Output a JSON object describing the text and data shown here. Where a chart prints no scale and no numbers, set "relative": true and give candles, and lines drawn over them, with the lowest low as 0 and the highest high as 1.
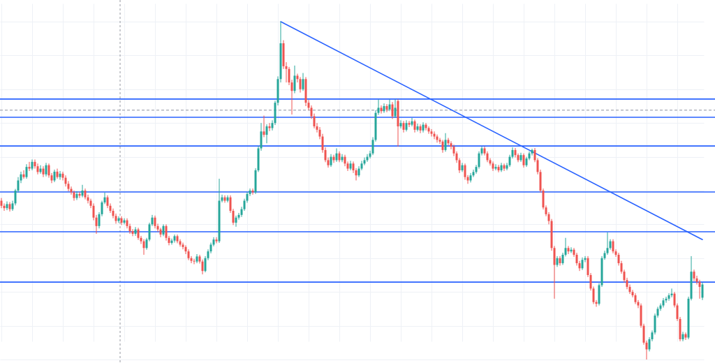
{
  "chart_data": {
    "type": "candlestick",
    "relative": true,
    "grid": true,
    "categories": [
      null,
      null,
      null,
      null,
      null,
      null,
      null,
      null,
      null,
      null,
      null,
      null,
      null,
      null,
      null,
      null,
      null,
      null,
      null,
      null,
      null,
      null,
      null,
      null,
      null,
      null,
      null,
      null,
      null,
      null,
      null,
      null,
      null,
      null,
      null,
      null,
      null,
      null,
      null,
      null,
      null,
      null,
      null,
      null,
      null,
      null,
      null,
      null,
      null,
      null,
      null,
      null,
      null,
      null,
      null,
      null,
      null,
      null,
      null,
      null,
      null,
      null,
      null,
      null,
      null,
      null,
      null,
      null,
      null,
      null,
      null,
      null,
      null,
      null,
      null,
      null,
      null,
      null,
      null,
      null,
      null,
      null,
      null,
      null,
      null,
      null,
      null,
      null,
      null,
      null,
      null,
      null,
      null,
      null,
      null,
      null,
      null,
      null,
      null,
      null,
      null,
      null,
      null,
      null,
      null,
      null,
      null,
      null,
      null,
      null,
      null,
      null,
      null,
      null,
      null,
      null,
      null,
      null,
      null,
      null,
      null,
      null,
      null,
      null,
      null,
      null,
      null,
      null,
      null,
      null,
      null,
      null,
      null,
      null,
      null,
      null,
      null,
      null,
      null,
      null,
      null,
      null,
      null,
      null,
      null,
      null,
      null,
      null,
      null,
      null,
      null,
      null,
      null,
      null,
      null,
      null,
      null,
      null,
      null,
      null,
      null,
      null,
      null,
      null,
      null,
      null,
      null,
      null,
      null,
      null,
      null,
      null,
      null,
      null,
      null,
      null,
      null,
      null,
      null,
      null,
      null,
      null,
      null,
      null,
      null,
      null,
      null,
      null,
      null,
      null,
      null,
      null,
      null,
      null,
      null,
      null,
      null,
      null,
      null,
      null,
      null,
      null,
      null,
      null,
      null,
      null,
      null,
      null,
      null,
      null,
      null,
      null,
      null,
      null,
      null,
      null,
      null,
      null,
      null,
      null,
      null,
      null,
      null,
      null,
      null,
      null,
      null,
      null,
      null,
      null,
      null,
      null,
      null,
      null,
      null,
      null,
      null,
      null,
      null,
      null,
      null,
      null,
      null,
      null,
      null,
      null,
      null,
      null,
      null,
      null,
      null,
      null
    ],
    "ohlc": [
      [
        0.47,
        0.478,
        0.448,
        0.455
      ],
      [
        0.455,
        0.462,
        0.44,
        0.448
      ],
      [
        0.448,
        0.468,
        0.442,
        0.46
      ],
      [
        0.46,
        0.466,
        0.438,
        0.445
      ],
      [
        0.445,
        0.47,
        0.44,
        0.462
      ],
      [
        0.462,
        0.505,
        0.456,
        0.5
      ],
      [
        0.5,
        0.54,
        0.494,
        0.53
      ],
      [
        0.53,
        0.556,
        0.522,
        0.548
      ],
      [
        0.548,
        0.56,
        0.535,
        0.54
      ],
      [
        0.54,
        0.578,
        0.535,
        0.57
      ],
      [
        0.57,
        0.585,
        0.558,
        0.565
      ],
      [
        0.565,
        0.592,
        0.56,
        0.585
      ],
      [
        0.585,
        0.592,
        0.565,
        0.572
      ],
      [
        0.572,
        0.58,
        0.548,
        0.555
      ],
      [
        0.555,
        0.575,
        0.55,
        0.565
      ],
      [
        0.565,
        0.572,
        0.54,
        0.548
      ],
      [
        0.548,
        0.582,
        0.542,
        0.575
      ],
      [
        0.575,
        0.58,
        0.538,
        0.545
      ],
      [
        0.545,
        0.552,
        0.522,
        0.53
      ],
      [
        0.53,
        0.562,
        0.525,
        0.556
      ],
      [
        0.556,
        0.565,
        0.535,
        0.54
      ],
      [
        0.54,
        0.558,
        0.532,
        0.55
      ],
      [
        0.55,
        0.556,
        0.53,
        0.538
      ],
      [
        0.538,
        0.545,
        0.512,
        0.52
      ],
      [
        0.52,
        0.528,
        0.498,
        0.505
      ],
      [
        0.505,
        0.512,
        0.488,
        0.495
      ],
      [
        0.495,
        0.5,
        0.47,
        0.478
      ],
      [
        0.478,
        0.498,
        0.472,
        0.49
      ],
      [
        0.49,
        0.496,
        0.478,
        0.485
      ],
      [
        0.485,
        0.517,
        0.48,
        0.5
      ],
      [
        0.5,
        0.506,
        0.474,
        0.48
      ],
      [
        0.48,
        0.488,
        0.462,
        0.47
      ],
      [
        0.47,
        0.476,
        0.448,
        0.455
      ],
      [
        0.455,
        0.462,
        0.412,
        0.42
      ],
      [
        0.42,
        0.428,
        0.372,
        0.395
      ],
      [
        0.395,
        0.436,
        0.388,
        0.43
      ],
      [
        0.43,
        0.47,
        0.424,
        0.465
      ],
      [
        0.465,
        0.494,
        0.46,
        0.48
      ],
      [
        0.48,
        0.486,
        0.448,
        0.455
      ],
      [
        0.455,
        0.462,
        0.434,
        0.44
      ],
      [
        0.44,
        0.447,
        0.418,
        0.425
      ],
      [
        0.425,
        0.432,
        0.402,
        0.41
      ],
      [
        0.41,
        0.424,
        0.404,
        0.418
      ],
      [
        0.418,
        0.424,
        0.398,
        0.405
      ],
      [
        0.405,
        0.418,
        0.4,
        0.412
      ],
      [
        0.412,
        0.418,
        0.388,
        0.395
      ],
      [
        0.395,
        0.402,
        0.372,
        0.38
      ],
      [
        0.38,
        0.386,
        0.365,
        0.372
      ],
      [
        0.372,
        0.392,
        0.366,
        0.385
      ],
      [
        0.385,
        0.39,
        0.354,
        0.36
      ],
      [
        0.36,
        0.366,
        0.342,
        0.35
      ],
      [
        0.35,
        0.356,
        0.31,
        0.33
      ],
      [
        0.33,
        0.36,
        0.325,
        0.355
      ],
      [
        0.355,
        0.405,
        0.35,
        0.4
      ],
      [
        0.4,
        0.428,
        0.395,
        0.42
      ],
      [
        0.42,
        0.426,
        0.388,
        0.395
      ],
      [
        0.395,
        0.402,
        0.378,
        0.385
      ],
      [
        0.385,
        0.39,
        0.362,
        0.37
      ],
      [
        0.37,
        0.4,
        0.365,
        0.395
      ],
      [
        0.395,
        0.4,
        0.352,
        0.36
      ],
      [
        0.36,
        0.366,
        0.338,
        0.345
      ],
      [
        0.345,
        0.358,
        0.34,
        0.352
      ],
      [
        0.352,
        0.37,
        0.346,
        0.365
      ],
      [
        0.365,
        0.37,
        0.344,
        0.35
      ],
      [
        0.35,
        0.356,
        0.334,
        0.34
      ],
      [
        0.34,
        0.346,
        0.326,
        0.333
      ],
      [
        0.333,
        0.338,
        0.312,
        0.32
      ],
      [
        0.32,
        0.326,
        0.294,
        0.3
      ],
      [
        0.3,
        0.306,
        0.285,
        0.292
      ],
      [
        0.292,
        0.298,
        0.282,
        0.29
      ],
      [
        0.29,
        0.312,
        0.285,
        0.305
      ],
      [
        0.305,
        0.31,
        0.284,
        0.29
      ],
      [
        0.29,
        0.296,
        0.252,
        0.262
      ],
      [
        0.262,
        0.306,
        0.258,
        0.3
      ],
      [
        0.3,
        0.326,
        0.294,
        0.32
      ],
      [
        0.32,
        0.346,
        0.314,
        0.34
      ],
      [
        0.34,
        0.362,
        0.335,
        0.355
      ],
      [
        0.355,
        0.362,
        0.344,
        0.35
      ],
      [
        0.35,
        0.535,
        0.345,
        0.47
      ],
      [
        0.47,
        0.488,
        0.465,
        0.48
      ],
      [
        0.48,
        0.486,
        0.464,
        0.47
      ],
      [
        0.47,
        0.486,
        0.465,
        0.48
      ],
      [
        0.48,
        0.486,
        0.434,
        0.44
      ],
      [
        0.44,
        0.446,
        0.398,
        0.405
      ],
      [
        0.405,
        0.426,
        0.393,
        0.42
      ],
      [
        0.42,
        0.434,
        0.414,
        0.428
      ],
      [
        0.428,
        0.452,
        0.422,
        0.445
      ],
      [
        0.445,
        0.476,
        0.44,
        0.47
      ],
      [
        0.47,
        0.496,
        0.464,
        0.49
      ],
      [
        0.49,
        0.506,
        0.484,
        0.5
      ],
      [
        0.5,
        0.506,
        0.488,
        0.495
      ],
      [
        0.495,
        0.566,
        0.49,
        0.56
      ],
      [
        0.56,
        0.632,
        0.555,
        0.625
      ],
      [
        0.625,
        0.7,
        0.618,
        0.675
      ],
      [
        0.675,
        0.722,
        0.658,
        0.665
      ],
      [
        0.665,
        0.696,
        0.64,
        0.69
      ],
      [
        0.69,
        0.7,
        0.676,
        0.685
      ],
      [
        0.685,
        0.708,
        0.678,
        0.7
      ],
      [
        0.7,
        0.766,
        0.694,
        0.76
      ],
      [
        0.76,
        0.838,
        0.752,
        0.83
      ],
      [
        0.83,
        1.0,
        0.82,
        0.936
      ],
      [
        0.936,
        0.945,
        0.86,
        0.868
      ],
      [
        0.868,
        0.88,
        0.82,
        0.86
      ],
      [
        0.86,
        0.866,
        0.812,
        0.82
      ],
      [
        0.82,
        0.828,
        0.725,
        0.795
      ],
      [
        0.795,
        0.87,
        0.788,
        0.84
      ],
      [
        0.84,
        0.846,
        0.82,
        0.83
      ],
      [
        0.83,
        0.836,
        0.79,
        0.8
      ],
      [
        0.8,
        0.848,
        0.795,
        0.83
      ],
      [
        0.83,
        0.836,
        0.75,
        0.76
      ],
      [
        0.76,
        0.768,
        0.738,
        0.745
      ],
      [
        0.745,
        0.752,
        0.712,
        0.72
      ],
      [
        0.72,
        0.728,
        0.684,
        0.69
      ],
      [
        0.69,
        0.7,
        0.672,
        0.68
      ],
      [
        0.68,
        0.688,
        0.652,
        0.66
      ],
      [
        0.66,
        0.668,
        0.612,
        0.62
      ],
      [
        0.62,
        0.628,
        0.584,
        0.59
      ],
      [
        0.59,
        0.598,
        0.568,
        0.575
      ],
      [
        0.575,
        0.608,
        0.57,
        0.6
      ],
      [
        0.6,
        0.606,
        0.582,
        0.59
      ],
      [
        0.59,
        0.625,
        0.585,
        0.61
      ],
      [
        0.61,
        0.616,
        0.584,
        0.59
      ],
      [
        0.59,
        0.608,
        0.584,
        0.6
      ],
      [
        0.6,
        0.606,
        0.572,
        0.58
      ],
      [
        0.58,
        0.586,
        0.558,
        0.565
      ],
      [
        0.565,
        0.588,
        0.56,
        0.58
      ],
      [
        0.58,
        0.586,
        0.552,
        0.56
      ],
      [
        0.56,
        0.566,
        0.53,
        0.545
      ],
      [
        0.545,
        0.572,
        0.54,
        0.565
      ],
      [
        0.565,
        0.588,
        0.56,
        0.58
      ],
      [
        0.58,
        0.598,
        0.575,
        0.59
      ],
      [
        0.59,
        0.608,
        0.585,
        0.6
      ],
      [
        0.6,
        0.618,
        0.595,
        0.61
      ],
      [
        0.61,
        0.658,
        0.605,
        0.65
      ],
      [
        0.65,
        0.738,
        0.645,
        0.73
      ],
      [
        0.73,
        0.77,
        0.724,
        0.745
      ],
      [
        0.745,
        0.752,
        0.728,
        0.735
      ],
      [
        0.735,
        0.758,
        0.73,
        0.75
      ],
      [
        0.75,
        0.756,
        0.732,
        0.74
      ],
      [
        0.74,
        0.77,
        0.735,
        0.755
      ],
      [
        0.755,
        0.762,
        0.712,
        0.72
      ],
      [
        0.72,
        0.77,
        0.715,
        0.745
      ],
      [
        0.765,
        0.77,
        0.63,
        0.69
      ],
      [
        0.69,
        0.708,
        0.684,
        0.7
      ],
      [
        0.7,
        0.706,
        0.672,
        0.68
      ],
      [
        0.68,
        0.708,
        0.675,
        0.7
      ],
      [
        0.7,
        0.706,
        0.688,
        0.695
      ],
      [
        0.695,
        0.715,
        0.69,
        0.705
      ],
      [
        0.705,
        0.71,
        0.672,
        0.68
      ],
      [
        0.68,
        0.698,
        0.675,
        0.69
      ],
      [
        0.69,
        0.696,
        0.67,
        0.678
      ],
      [
        0.678,
        0.702,
        0.672,
        0.695
      ],
      [
        0.695,
        0.7,
        0.678,
        0.685
      ],
      [
        0.685,
        0.69,
        0.668,
        0.675
      ],
      [
        0.675,
        0.682,
        0.66,
        0.668
      ],
      [
        0.668,
        0.675,
        0.652,
        0.66
      ],
      [
        0.66,
        0.666,
        0.642,
        0.65
      ],
      [
        0.65,
        0.656,
        0.638,
        0.645
      ],
      [
        0.645,
        0.65,
        0.612,
        0.62
      ],
      [
        0.62,
        0.67,
        0.615,
        0.65
      ],
      [
        0.65,
        0.656,
        0.634,
        0.64
      ],
      [
        0.64,
        0.646,
        0.622,
        0.63
      ],
      [
        0.63,
        0.636,
        0.602,
        0.61
      ],
      [
        0.61,
        0.616,
        0.582,
        0.59
      ],
      [
        0.59,
        0.596,
        0.552,
        0.56
      ],
      [
        0.56,
        0.582,
        0.555,
        0.575
      ],
      [
        0.575,
        0.58,
        0.532,
        0.54
      ],
      [
        0.54,
        0.546,
        0.52,
        0.53
      ],
      [
        0.53,
        0.552,
        0.524,
        0.545
      ],
      [
        0.545,
        0.562,
        0.54,
        0.555
      ],
      [
        0.555,
        0.576,
        0.55,
        0.57
      ],
      [
        0.57,
        0.616,
        0.565,
        0.61
      ],
      [
        0.61,
        0.63,
        0.604,
        0.625
      ],
      [
        0.625,
        0.63,
        0.604,
        0.61
      ],
      [
        0.61,
        0.616,
        0.584,
        0.59
      ],
      [
        0.59,
        0.596,
        0.574,
        0.58
      ],
      [
        0.58,
        0.586,
        0.558,
        0.565
      ],
      [
        0.565,
        0.578,
        0.56,
        0.57
      ],
      [
        0.57,
        0.576,
        0.554,
        0.56
      ],
      [
        0.56,
        0.582,
        0.555,
        0.575
      ],
      [
        0.575,
        0.58,
        0.558,
        0.565
      ],
      [
        0.565,
        0.582,
        0.56,
        0.575
      ],
      [
        0.575,
        0.606,
        0.57,
        0.6
      ],
      [
        0.6,
        0.628,
        0.595,
        0.62
      ],
      [
        0.62,
        0.626,
        0.598,
        0.605
      ],
      [
        0.605,
        0.61,
        0.584,
        0.59
      ],
      [
        0.59,
        0.612,
        0.585,
        0.605
      ],
      [
        0.605,
        0.61,
        0.568,
        0.575
      ],
      [
        0.575,
        0.6,
        0.57,
        0.595
      ],
      [
        0.595,
        0.616,
        0.59,
        0.61
      ],
      [
        0.61,
        0.624,
        0.604,
        0.62
      ],
      [
        0.62,
        0.626,
        0.584,
        0.59
      ],
      [
        0.59,
        0.596,
        0.548,
        0.555
      ],
      [
        0.555,
        0.562,
        0.494,
        0.5
      ],
      [
        0.5,
        0.506,
        0.444,
        0.45
      ],
      [
        0.45,
        0.456,
        0.424,
        0.43
      ],
      [
        0.43,
        0.436,
        0.4,
        0.41
      ],
      [
        0.41,
        0.416,
        0.322,
        0.33
      ],
      [
        0.33,
        0.336,
        0.18,
        0.28
      ],
      [
        0.28,
        0.306,
        0.274,
        0.3
      ],
      [
        0.3,
        0.306,
        0.278,
        0.285
      ],
      [
        0.285,
        0.316,
        0.28,
        0.31
      ],
      [
        0.31,
        0.36,
        0.305,
        0.33
      ],
      [
        0.33,
        0.336,
        0.312,
        0.32
      ],
      [
        0.32,
        0.332,
        0.315,
        0.325
      ],
      [
        0.325,
        0.33,
        0.304,
        0.31
      ],
      [
        0.31,
        0.316,
        0.278,
        0.285
      ],
      [
        0.285,
        0.292,
        0.262,
        0.27
      ],
      [
        0.27,
        0.302,
        0.265,
        0.295
      ],
      [
        0.295,
        0.306,
        0.288,
        0.3
      ],
      [
        0.3,
        0.306,
        0.244,
        0.25
      ],
      [
        0.25,
        0.256,
        0.204,
        0.21
      ],
      [
        0.21,
        0.216,
        0.164,
        0.17
      ],
      [
        0.17,
        0.176,
        0.156,
        0.165
      ],
      [
        0.165,
        0.226,
        0.16,
        0.22
      ],
      [
        0.22,
        0.306,
        0.215,
        0.3
      ],
      [
        0.3,
        0.322,
        0.295,
        0.315
      ],
      [
        0.315,
        0.376,
        0.31,
        0.33
      ],
      [
        0.33,
        0.356,
        0.325,
        0.35
      ],
      [
        0.35,
        0.356,
        0.314,
        0.32
      ],
      [
        0.32,
        0.326,
        0.304,
        0.31
      ],
      [
        0.31,
        0.316,
        0.278,
        0.285
      ],
      [
        0.285,
        0.292,
        0.254,
        0.26
      ],
      [
        0.26,
        0.266,
        0.228,
        0.235
      ],
      [
        0.235,
        0.242,
        0.208,
        0.215
      ],
      [
        0.215,
        0.222,
        0.194,
        0.2
      ],
      [
        0.2,
        0.206,
        0.184,
        0.19
      ],
      [
        0.19,
        0.196,
        0.164,
        0.17
      ],
      [
        0.17,
        0.176,
        0.152,
        0.16
      ],
      [
        0.16,
        0.166,
        0.094,
        0.1
      ],
      [
        0.1,
        0.106,
        0.044,
        0.05
      ],
      [
        0.05,
        0.056,
        0.0,
        0.03
      ],
      [
        0.03,
        0.066,
        0.024,
        0.06
      ],
      [
        0.06,
        0.086,
        0.054,
        0.08
      ],
      [
        0.08,
        0.136,
        0.074,
        0.13
      ],
      [
        0.13,
        0.156,
        0.124,
        0.15
      ],
      [
        0.15,
        0.166,
        0.144,
        0.16
      ],
      [
        0.16,
        0.182,
        0.154,
        0.175
      ],
      [
        0.175,
        0.186,
        0.168,
        0.18
      ],
      [
        0.18,
        0.196,
        0.174,
        0.19
      ],
      [
        0.19,
        0.21,
        0.184,
        0.195
      ],
      [
        0.195,
        0.2,
        0.154,
        0.16
      ],
      [
        0.16,
        0.166,
        0.114,
        0.12
      ],
      [
        0.12,
        0.126,
        0.054,
        0.06
      ],
      [
        0.06,
        0.082,
        0.054,
        0.075
      ],
      [
        0.075,
        0.08,
        0.058,
        0.065
      ],
      [
        0.065,
        0.186,
        0.06,
        0.18
      ],
      [
        0.18,
        0.306,
        0.175,
        0.26
      ],
      [
        0.26,
        0.266,
        0.232,
        0.24
      ],
      [
        0.24,
        0.248,
        0.222,
        0.23
      ],
      [
        0.23,
        0.236,
        0.18,
        0.215
      ],
      [
        0.183,
        0.228,
        0.176,
        0.222
      ]
    ],
    "colors": [
      "#ef5350",
      "#ef5350",
      "#26a69a",
      "#ef5350",
      "#26a69a",
      "#26a69a",
      "#26a69a",
      "#26a69a",
      "#ef5350",
      "#26a69a",
      "#ef5350",
      "#26a69a",
      "#ef5350",
      "#ef5350",
      "#26a69a",
      "#ef5350",
      "#26a69a",
      "#ef5350",
      "#ef5350",
      "#26a69a",
      "#ef5350",
      "#26a69a",
      "#ef5350",
      "#ef5350",
      "#ef5350",
      "#ef5350",
      "#ef5350",
      "#26a69a",
      "#ef5350",
      "#26a69a",
      "#ef5350",
      "#ef5350",
      "#ef5350",
      "#ef5350",
      "#ef5350",
      "#26a69a",
      "#26a69a",
      "#26a69a",
      "#ef5350",
      "#ef5350",
      "#ef5350",
      "#ef5350",
      "#26a69a",
      "#ef5350",
      "#26a69a",
      "#ef5350",
      "#ef5350",
      "#ef5350",
      "#26a69a",
      "#ef5350",
      "#ef5350",
      "#ef5350",
      "#26a69a",
      "#26a69a",
      "#26a69a",
      "#ef5350",
      "#ef5350",
      "#ef5350",
      "#26a69a",
      "#ef5350",
      "#ef5350",
      "#26a69a",
      "#26a69a",
      "#ef5350",
      "#ef5350",
      "#ef5350",
      "#ef5350",
      "#ef5350",
      "#ef5350",
      "#ef5350",
      "#26a69a",
      "#ef5350",
      "#ef5350",
      "#26a69a",
      "#26a69a",
      "#26a69a",
      "#26a69a",
      "#ef5350",
      "#26a69a",
      "#26a69a",
      "#ef5350",
      "#26a69a",
      "#ef5350",
      "#ef5350",
      "#26a69a",
      "#26a69a",
      "#26a69a",
      "#26a69a",
      "#26a69a",
      "#26a69a",
      "#ef5350",
      "#26a69a",
      "#26a69a",
      "#26a69a",
      "#ef5350",
      "#26a69a",
      "#ef5350",
      "#26a69a",
      "#26a69a",
      "#26a69a",
      "#26a69a",
      "#ef5350",
      "#ef5350",
      "#ef5350",
      "#ef5350",
      "#26a69a",
      "#ef5350",
      "#ef5350",
      "#26a69a",
      "#ef5350",
      "#ef5350",
      "#ef5350",
      "#ef5350",
      "#ef5350",
      "#ef5350",
      "#ef5350",
      "#ef5350",
      "#ef5350",
      "#26a69a",
      "#ef5350",
      "#26a69a",
      "#ef5350",
      "#26a69a",
      "#ef5350",
      "#ef5350",
      "#26a69a",
      "#ef5350",
      "#ef5350",
      "#26a69a",
      "#26a69a",
      "#26a69a",
      "#26a69a",
      "#26a69a",
      "#26a69a",
      "#26a69a",
      "#26a69a",
      "#ef5350",
      "#26a69a",
      "#ef5350",
      "#26a69a",
      "#ef5350",
      "#26a69a",
      "#ef5350",
      "#26a69a",
      "#ef5350",
      "#26a69a",
      "#ef5350",
      "#26a69a",
      "#ef5350",
      "#26a69a",
      "#ef5350",
      "#26a69a",
      "#ef5350",
      "#ef5350",
      "#ef5350",
      "#ef5350",
      "#ef5350",
      "#ef5350",
      "#ef5350",
      "#26a69a",
      "#ef5350",
      "#ef5350",
      "#ef5350",
      "#ef5350",
      "#ef5350",
      "#26a69a",
      "#ef5350",
      "#ef5350",
      "#26a69a",
      "#26a69a",
      "#26a69a",
      "#26a69a",
      "#26a69a",
      "#ef5350",
      "#ef5350",
      "#ef5350",
      "#ef5350",
      "#26a69a",
      "#ef5350",
      "#26a69a",
      "#ef5350",
      "#26a69a",
      "#26a69a",
      "#26a69a",
      "#ef5350",
      "#ef5350",
      "#26a69a",
      "#ef5350",
      "#26a69a",
      "#26a69a",
      "#26a69a",
      "#ef5350",
      "#ef5350",
      "#ef5350",
      "#ef5350",
      "#ef5350",
      "#ef5350",
      "#ef5350",
      "#ef5350",
      "#26a69a",
      "#ef5350",
      "#26a69a",
      "#26a69a",
      "#ef5350",
      "#26a69a",
      "#ef5350",
      "#ef5350",
      "#ef5350",
      "#26a69a",
      "#26a69a",
      "#ef5350",
      "#ef5350",
      "#ef5350",
      "#ef5350",
      "#26a69a",
      "#26a69a",
      "#26a69a",
      "#26a69a",
      "#26a69a",
      "#ef5350",
      "#ef5350",
      "#ef5350",
      "#ef5350",
      "#ef5350",
      "#ef5350",
      "#ef5350",
      "#ef5350",
      "#ef5350",
      "#ef5350",
      "#ef5350",
      "#ef5350",
      "#ef5350",
      "#26a69a",
      "#26a69a",
      "#26a69a",
      "#26a69a",
      "#26a69a",
      "#26a69a",
      "#26a69a",
      "#26a69a",
      "#26a69a",
      "#ef5350",
      "#ef5350",
      "#ef5350",
      "#26a69a",
      "#ef5350",
      "#26a69a",
      "#26a69a",
      "#ef5350",
      "#ef5350",
      "#ef5350",
      "#26a69a"
    ],
    "series": [
      {
        "type": "line",
        "color": "#2962ff",
        "values": [
          null,
          null,
          null,
          null,
          null,
          null,
          null,
          null,
          null,
          null,
          null,
          null,
          null,
          null,
          null,
          null,
          null,
          null,
          null,
          null,
          null,
          null,
          null,
          null,
          null,
          null,
          null,
          null,
          null,
          null,
          null,
          null,
          null,
          null,
          null,
          null,
          null,
          null,
          null,
          null,
          null,
          null,
          null,
          null,
          null,
          null,
          null,
          null,
          null,
          null,
          null,
          null,
          null,
          null,
          null,
          null,
          null,
          null,
          null,
          null,
          null,
          null,
          null,
          null,
          null,
          null,
          null,
          null,
          null,
          null,
          null,
          null,
          null,
          null,
          null,
          null,
          null,
          null,
          null,
          null,
          null,
          null,
          null,
          null,
          null,
          null,
          null,
          null,
          null,
          null,
          null,
          null,
          null,
          null,
          null,
          null,
          null,
          null,
          null,
          null,
          1.0,
          null,
          null,
          null,
          null,
          null,
          null,
          null,
          null,
          null,
          null,
          null,
          null,
          null,
          null,
          null,
          null,
          null,
          null,
          null,
          null,
          null,
          null,
          null,
          null,
          null,
          null,
          null,
          null,
          null,
          null,
          null,
          null,
          null,
          null,
          null,
          null,
          null,
          null,
          null,
          null,
          null,
          null,
          null,
          null,
          null,
          null,
          null,
          null,
          null,
          null,
          null,
          null,
          null,
          null,
          null,
          null,
          null,
          null,
          null,
          null,
          null,
          null,
          null,
          null,
          null,
          null,
          null,
          null,
          null,
          null,
          null,
          null,
          null,
          null,
          null,
          null,
          null,
          null,
          null,
          null,
          null,
          null,
          null,
          null,
          null,
          null,
          null,
          null,
          null,
          null,
          null,
          null,
          null,
          null,
          null,
          null,
          null,
          null,
          null,
          null,
          null,
          null,
          null,
          null,
          null,
          null,
          null,
          null,
          null,
          null,
          null,
          null,
          null,
          null,
          null,
          null,
          null,
          null,
          null,
          null,
          null,
          null,
          null,
          null,
          null,
          null,
          null,
          null,
          null,
          null,
          null,
          null,
          null,
          null,
          null,
          null,
          null,
          null,
          null,
          null,
          null,
          null,
          null,
          null,
          null,
          null,
          null,
          null,
          null,
          null,
          0.355
        ]
      }
    ],
    "ref_lines": [
      {
        "axis": "y",
        "value": 0.771,
        "color": "#2962ff"
      },
      {
        "axis": "y",
        "value": 0.717,
        "color": "#2962ff"
      },
      {
        "axis": "y",
        "value": 0.632,
        "color": "#2962ff"
      },
      {
        "axis": "y",
        "value": 0.496,
        "color": "#2962ff"
      },
      {
        "axis": "y",
        "value": 0.378,
        "color": "#2962ff"
      },
      {
        "axis": "y",
        "value": 0.229,
        "color": "#2962ff"
      },
      {
        "axis": "y",
        "value": 0.738,
        "color": "#b2b5be",
        "line_style": "dashed"
      }
    ]
  }
}
